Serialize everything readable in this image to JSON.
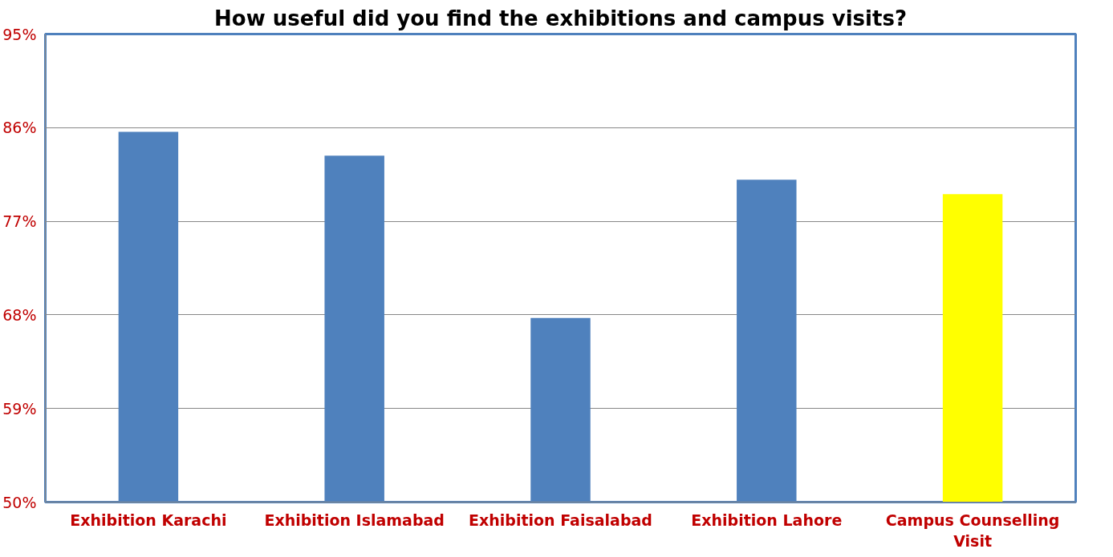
{
  "chart_data": {
    "type": "bar",
    "title": "How useful did you find the exhibitions and campus visits?",
    "categories": [
      "Exhibition Karachi",
      "Exhibition Islamabad",
      "Exhibition Faisalabad",
      "Exhibition Lahore",
      "Campus Counselling Visit"
    ],
    "values": [
      85.6,
      83.3,
      67.7,
      81,
      79.6
    ],
    "colors": [
      "#4f81bd",
      "#4f81bd",
      "#4f81bd",
      "#4f81bd",
      "#ffff00"
    ],
    "ylim": [
      50,
      95
    ],
    "yticks": [
      {
        "value": 50,
        "label": "50%"
      },
      {
        "value": 59,
        "label": "59%"
      },
      {
        "value": 68,
        "label": "68%"
      },
      {
        "value": 77,
        "label": "77%"
      },
      {
        "value": 86,
        "label": "86%"
      },
      {
        "value": 95,
        "label": "95%"
      }
    ],
    "grid": "y"
  }
}
